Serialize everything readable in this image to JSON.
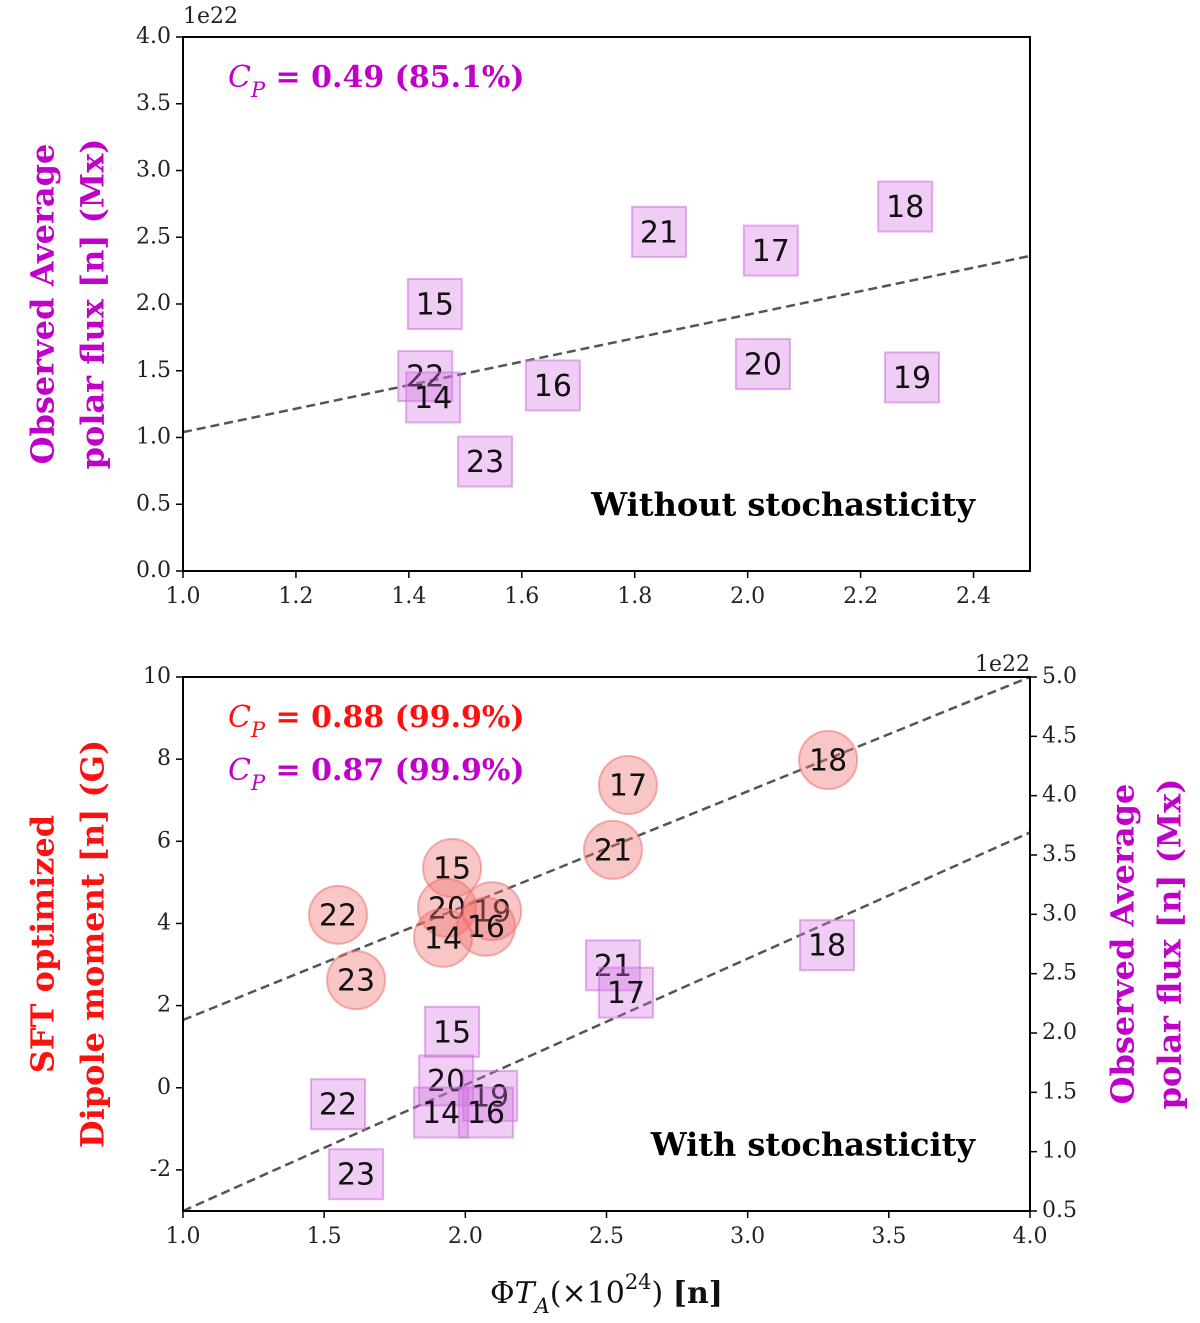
{
  "chart_data": [
    {
      "type": "scatter",
      "y_offset": "1e22",
      "ylabel": [
        "Observed Average",
        "polar flux [n] (Mx)"
      ],
      "ylabel_color": "#c000c8",
      "annotations": [
        {
          "color": "#c000c8",
          "parts": [
            {
              "text": "C",
              "style": "italic"
            },
            {
              "text": "P",
              "style": "italic sub"
            },
            {
              "text": " = 0.49 (85.1%)",
              "style": "bold"
            }
          ]
        }
      ],
      "text": "Without stochasticity",
      "xlim": [
        1.0,
        2.5
      ],
      "ylim": [
        0,
        4
      ],
      "xticks": [
        {
          "value": 1.0,
          "label": "1.0"
        },
        {
          "value": 1.2,
          "label": "1.2"
        },
        {
          "value": 1.4,
          "label": "1.4"
        },
        {
          "value": 1.6,
          "label": "1.6"
        },
        {
          "value": 1.8,
          "label": "1.8"
        },
        {
          "value": 2.0,
          "label": "2.0"
        },
        {
          "value": 2.2,
          "label": "2.2"
        },
        {
          "value": 2.4,
          "label": "2.4"
        }
      ],
      "yticks": [
        {
          "value": 0,
          "label": "0.0"
        },
        {
          "value": 0.5,
          "label": "0.5"
        },
        {
          "value": 1,
          "label": "1.0"
        },
        {
          "value": 1.5,
          "label": "1.5"
        },
        {
          "value": 2,
          "label": "2.0"
        },
        {
          "value": 2.5,
          "label": "2.5"
        },
        {
          "value": 3,
          "label": "3.0"
        },
        {
          "value": 3.5,
          "label": "3.5"
        },
        {
          "value": 4,
          "label": "4.0"
        }
      ],
      "series": [
        {
          "marker": "square",
          "color": "#d070e0",
          "labels": [
            "15",
            "22",
            "14",
            "16",
            "23",
            "21",
            "17",
            "20",
            "18",
            "19"
          ],
          "x": [
            1.446,
            1.429,
            1.443,
            1.655,
            1.535,
            1.843,
            2.041,
            2.027,
            2.279,
            2.291
          ],
          "values": [
            2.0,
            1.46,
            1.3,
            1.39,
            0.82,
            2.54,
            2.4,
            1.55,
            2.73,
            1.45
          ]
        }
      ],
      "fit_lines": [
        {
          "x": [
            1.0,
            2.5
          ],
          "values": [
            1.04,
            2.36
          ]
        }
      ]
    },
    {
      "type": "scatter",
      "y2_offset": "1e22",
      "ylabel": [
        "SFT optimized",
        "Dipole moment [n] (G)"
      ],
      "ylabel_color": "#ff1010",
      "y2label": [
        "Observed Average",
        "polar flux [n] (Mx)"
      ],
      "y2label_color": "#c000c8",
      "xlabel": [
        {
          "text": "Φ",
          "style": "normal"
        },
        {
          "text": "T",
          "style": "italic"
        },
        {
          "text": "A",
          "style": "italic sub"
        },
        {
          "text": "(×10",
          "style": "normal"
        },
        {
          "text": "24",
          "style": "super"
        },
        {
          "text": ") ",
          "style": "normal"
        },
        {
          "text": "[n]",
          "style": "bold"
        }
      ],
      "annotations": [
        {
          "color": "#ff1010",
          "parts": [
            {
              "text": "C",
              "style": "italic"
            },
            {
              "text": "P",
              "style": "italic sub"
            },
            {
              "text": " = 0.88 (99.9%)",
              "style": "bold"
            }
          ]
        },
        {
          "color": "#c000c8",
          "parts": [
            {
              "text": "C",
              "style": "italic"
            },
            {
              "text": "P",
              "style": "italic sub"
            },
            {
              "text": " = 0.87 (99.9%)",
              "style": "bold"
            }
          ]
        }
      ],
      "text": "With stochasticity",
      "xlim": [
        1.0,
        4.0
      ],
      "ylim": [
        -3,
        10
      ],
      "y2lim": [
        0.5,
        5.0
      ],
      "xticks": [
        {
          "value": 1.0,
          "label": "1.0"
        },
        {
          "value": 1.5,
          "label": "1.5"
        },
        {
          "value": 2.0,
          "label": "2.0"
        },
        {
          "value": 2.5,
          "label": "2.5"
        },
        {
          "value": 3.0,
          "label": "3.0"
        },
        {
          "value": 3.5,
          "label": "3.5"
        },
        {
          "value": 4.0,
          "label": "4.0"
        }
      ],
      "yticks": [
        -2,
        0,
        2,
        4,
        6,
        8,
        10
      ],
      "y2ticks": [
        0.5,
        {
          "value": 1,
          "label": "1.0"
        },
        1.5,
        {
          "value": 2,
          "label": "2.0"
        },
        2.5,
        {
          "value": 3,
          "label": "3.0"
        },
        3.5,
        {
          "value": 4,
          "label": "4.0"
        },
        4.5,
        {
          "value": 5,
          "label": "5.0"
        }
      ],
      "series": [
        {
          "marker": "circle",
          "color": "#f07070",
          "labels": [
            "18",
            "17",
            "21",
            "15",
            "20",
            "19",
            "16",
            "14",
            "22",
            "23"
          ],
          "x": [
            3.285,
            2.576,
            2.523,
            1.953,
            1.935,
            2.095,
            2.073,
            1.921,
            1.549,
            1.613
          ],
          "values": [
            7.98,
            7.37,
            5.79,
            5.35,
            4.38,
            4.3,
            3.92,
            3.65,
            4.21,
            2.62
          ]
        },
        {
          "marker": "square",
          "color": "#d070e0",
          "axis": "y2",
          "labels": [
            "18",
            "21",
            "17",
            "15",
            "20",
            "19",
            "16",
            "14",
            "22",
            "23"
          ],
          "x": [
            3.281,
            2.523,
            2.569,
            1.953,
            1.932,
            2.088,
            2.073,
            1.914,
            1.549,
            1.613
          ],
          "values": [
            2.74,
            2.57,
            2.34,
            2.01,
            1.6,
            1.47,
            1.33,
            1.33,
            1.4,
            0.81
          ]
        }
      ],
      "fit_lines": [
        {
          "x": [
            1.0,
            4.0
          ],
          "values": [
            1.65,
            10.0
          ]
        },
        {
          "x": [
            1.0,
            4.0
          ],
          "values": [
            0.5,
            3.69
          ],
          "axis": "y2"
        }
      ]
    }
  ]
}
